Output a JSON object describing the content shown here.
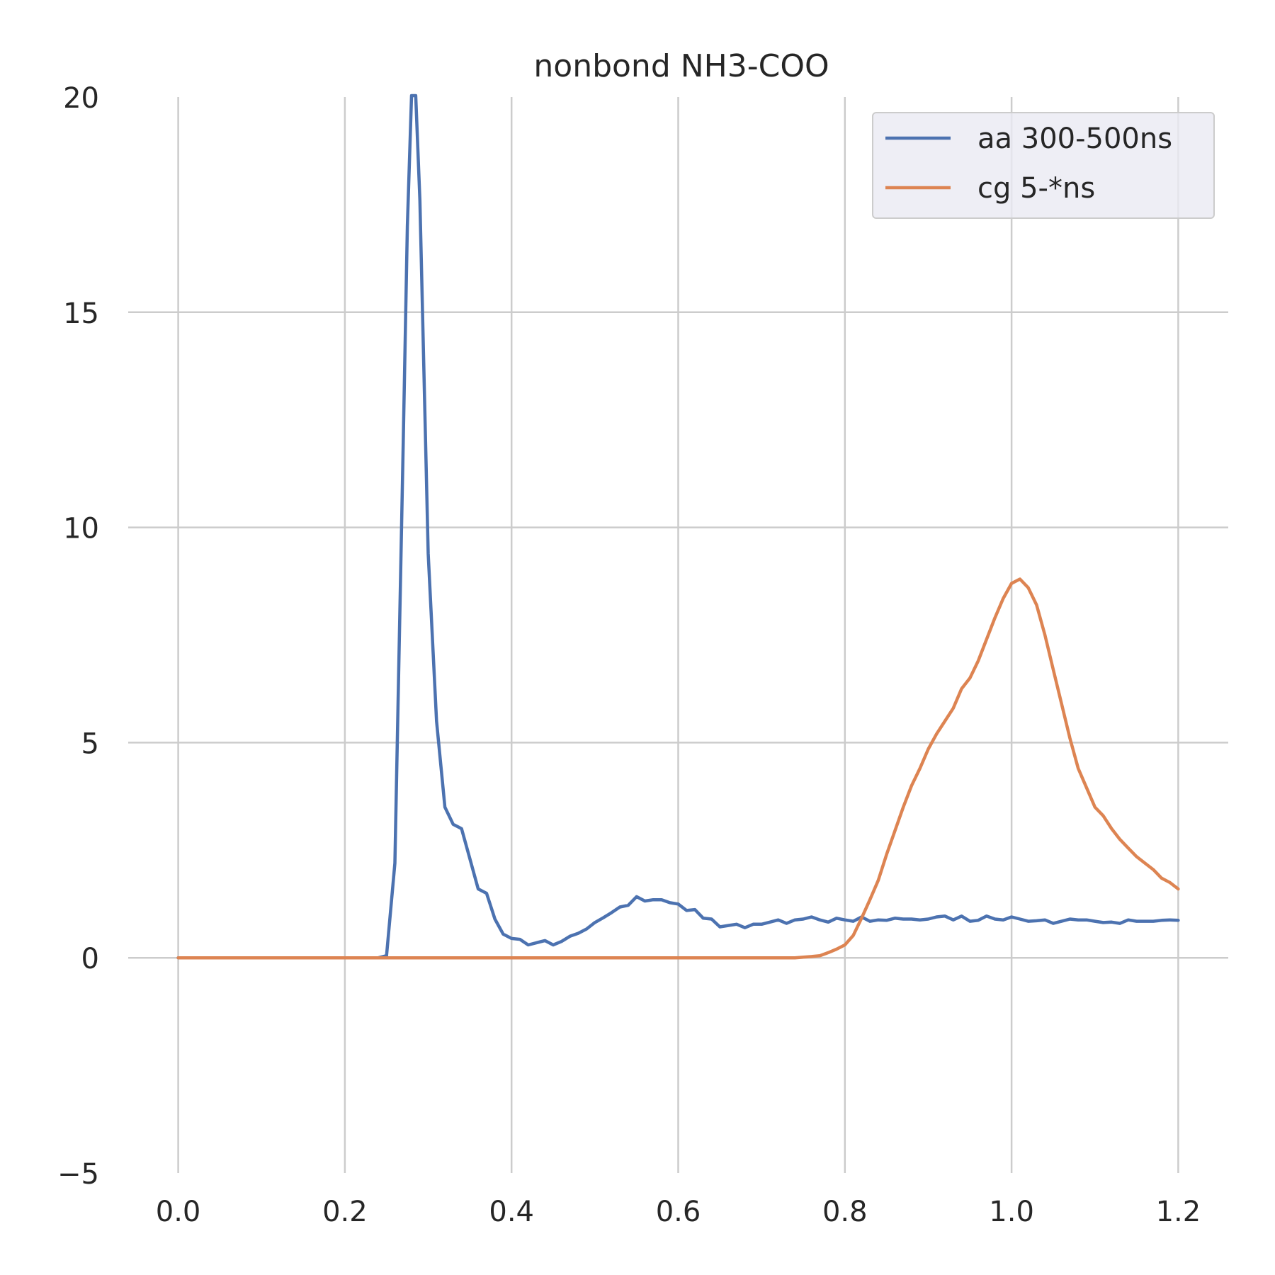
{
  "chart_data": {
    "type": "line",
    "title": "nonbond NH3-COO",
    "xlabel": "",
    "ylabel": "",
    "xlim": [
      -0.06,
      1.26
    ],
    "ylim": [
      -5,
      20
    ],
    "xticks": [
      0.0,
      0.2,
      0.4,
      0.6,
      0.8,
      1.0,
      1.2
    ],
    "xtick_labels": [
      "0.0",
      "0.2",
      "0.4",
      "0.6",
      "0.8",
      "1.0",
      "1.2"
    ],
    "yticks": [
      -5,
      0,
      5,
      10,
      15,
      20
    ],
    "ytick_labels": [
      "−5",
      "0",
      "5",
      "10",
      "15",
      "20"
    ],
    "grid": true,
    "legend_position": "top-right",
    "series": [
      {
        "name": "aa 300-500ns",
        "color": "#4c72b0",
        "x": [
          0.0,
          0.1,
          0.2,
          0.24,
          0.25,
          0.26,
          0.27,
          0.275,
          0.28,
          0.285,
          0.29,
          0.3,
          0.31,
          0.32,
          0.33,
          0.34,
          0.35,
          0.36,
          0.37,
          0.38,
          0.39,
          0.4,
          0.41,
          0.42,
          0.43,
          0.44,
          0.45,
          0.46,
          0.47,
          0.48,
          0.49,
          0.5,
          0.51,
          0.52,
          0.53,
          0.54,
          0.55,
          0.56,
          0.57,
          0.58,
          0.59,
          0.6,
          0.61,
          0.62,
          0.63,
          0.64,
          0.65,
          0.66,
          0.67,
          0.68,
          0.69,
          0.7,
          0.71,
          0.72,
          0.73,
          0.74,
          0.75,
          0.76,
          0.77,
          0.78,
          0.79,
          0.8,
          0.81,
          0.82,
          0.83,
          0.84,
          0.85,
          0.86,
          0.87,
          0.88,
          0.89,
          0.9,
          0.91,
          0.92,
          0.93,
          0.94,
          0.95,
          0.96,
          0.97,
          0.98,
          0.99,
          1.0,
          1.01,
          1.02,
          1.03,
          1.04,
          1.05,
          1.06,
          1.07,
          1.08,
          1.09,
          1.1,
          1.11,
          1.12,
          1.13,
          1.14,
          1.15,
          1.16,
          1.17,
          1.18,
          1.19,
          1.2
        ],
        "values": [
          0.0,
          0.0,
          0.0,
          0.0,
          0.05,
          2.2,
          12.0,
          17.0,
          21.0,
          22.0,
          17.6,
          9.4,
          5.5,
          3.5,
          3.1,
          3.0,
          2.3,
          1.6,
          1.5,
          0.9,
          0.55,
          0.45,
          0.43,
          0.3,
          0.35,
          0.4,
          0.3,
          0.38,
          0.5,
          0.57,
          0.67,
          0.82,
          0.93,
          1.05,
          1.18,
          1.22,
          1.42,
          1.32,
          1.35,
          1.35,
          1.28,
          1.25,
          1.1,
          1.12,
          0.92,
          0.9,
          0.72,
          0.75,
          0.78,
          0.7,
          0.78,
          0.78,
          0.83,
          0.88,
          0.8,
          0.88,
          0.9,
          0.95,
          0.88,
          0.83,
          0.92,
          0.88,
          0.85,
          0.95,
          0.85,
          0.88,
          0.87,
          0.92,
          0.9,
          0.9,
          0.88,
          0.9,
          0.95,
          0.97,
          0.88,
          0.97,
          0.85,
          0.87,
          0.97,
          0.9,
          0.88,
          0.95,
          0.9,
          0.85,
          0.86,
          0.88,
          0.8,
          0.85,
          0.9,
          0.88,
          0.88,
          0.85,
          0.82,
          0.83,
          0.8,
          0.88,
          0.85,
          0.85,
          0.85,
          0.87,
          0.88,
          0.87
        ]
      },
      {
        "name": "cg 5-*ns",
        "color": "#dd8452",
        "x": [
          0.0,
          0.1,
          0.2,
          0.3,
          0.4,
          0.5,
          0.6,
          0.7,
          0.74,
          0.76,
          0.77,
          0.78,
          0.79,
          0.8,
          0.81,
          0.82,
          0.83,
          0.84,
          0.85,
          0.86,
          0.87,
          0.88,
          0.89,
          0.9,
          0.91,
          0.92,
          0.93,
          0.94,
          0.95,
          0.96,
          0.97,
          0.98,
          0.99,
          1.0,
          1.01,
          1.02,
          1.03,
          1.04,
          1.05,
          1.06,
          1.07,
          1.08,
          1.09,
          1.1,
          1.11,
          1.12,
          1.13,
          1.14,
          1.15,
          1.16,
          1.17,
          1.18,
          1.19,
          1.2
        ],
        "values": [
          0.0,
          0.0,
          0.0,
          0.0,
          0.0,
          0.0,
          0.0,
          0.0,
          0.0,
          0.03,
          0.05,
          0.12,
          0.2,
          0.3,
          0.52,
          0.92,
          1.35,
          1.8,
          2.4,
          2.95,
          3.5,
          4.0,
          4.4,
          4.85,
          5.2,
          5.5,
          5.8,
          6.25,
          6.5,
          6.9,
          7.4,
          7.9,
          8.35,
          8.7,
          8.8,
          8.6,
          8.2,
          7.5,
          6.7,
          5.9,
          5.1,
          4.4,
          3.95,
          3.5,
          3.3,
          3.0,
          2.75,
          2.55,
          2.35,
          2.2,
          2.05,
          1.85,
          1.75,
          1.6
        ]
      }
    ]
  }
}
